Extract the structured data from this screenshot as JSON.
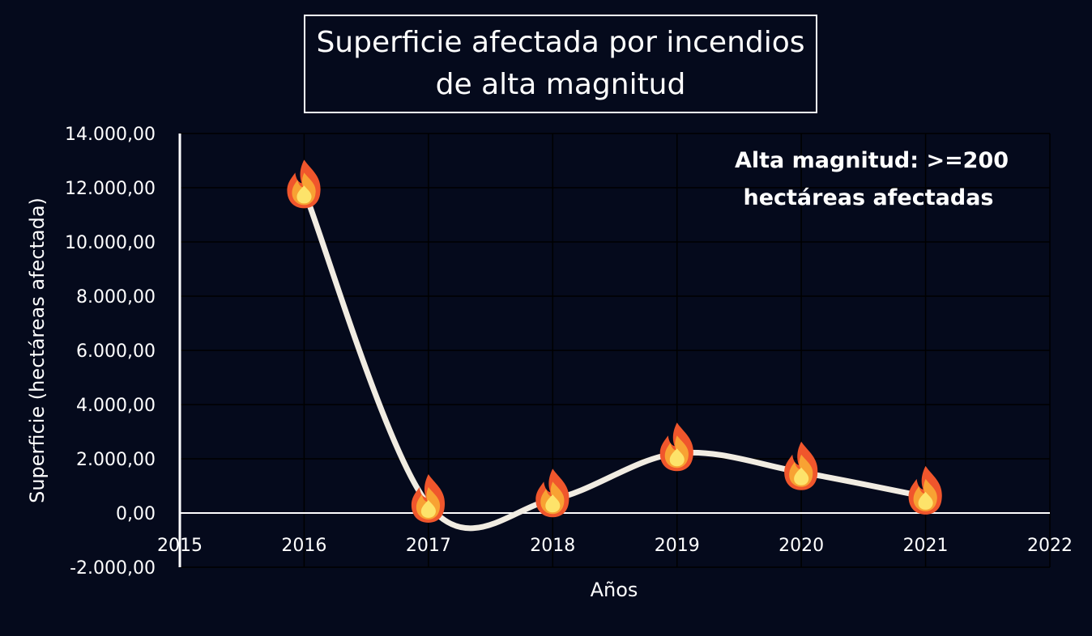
{
  "chart_data": {
    "type": "line",
    "title_lines": [
      "Superficie afectada por incendios",
      "de alta magnitud"
    ],
    "xlabel": "Años",
    "ylabel": "Superficie (hectáreas afectada)",
    "xlim": [
      2015,
      2022
    ],
    "ylim": [
      -2000,
      14000
    ],
    "x_ticks": [
      2015,
      2016,
      2017,
      2018,
      2019,
      2020,
      2021,
      2022
    ],
    "x_tick_labels": [
      "2015",
      "2016",
      "2017",
      "2018",
      "2019",
      "2020",
      "2021",
      "2022"
    ],
    "y_ticks": [
      -2000,
      0,
      2000,
      4000,
      6000,
      8000,
      10000,
      12000,
      14000
    ],
    "y_tick_labels": [
      "-2.000,00",
      "0,00",
      "2.000,00",
      "4.000,00",
      "6.000,00",
      "8.000,00",
      "10.000,00",
      "12.000,00",
      "14.000,00"
    ],
    "grid": true,
    "smooth": true,
    "series": [
      {
        "x": [
          2016,
          2017,
          2018,
          2019,
          2020,
          2021
        ],
        "values": [
          11900,
          300,
          500,
          2200,
          1500,
          600
        ],
        "marker": "flame",
        "color": "#f1ece2"
      }
    ],
    "annotation_lines": [
      "Alta magnitud: >=200",
      "hectáreas afectadas"
    ]
  },
  "colors": {
    "background": "#050a1c",
    "grid": "#000000",
    "line": "#f1ece2",
    "text": "#ffffff"
  }
}
